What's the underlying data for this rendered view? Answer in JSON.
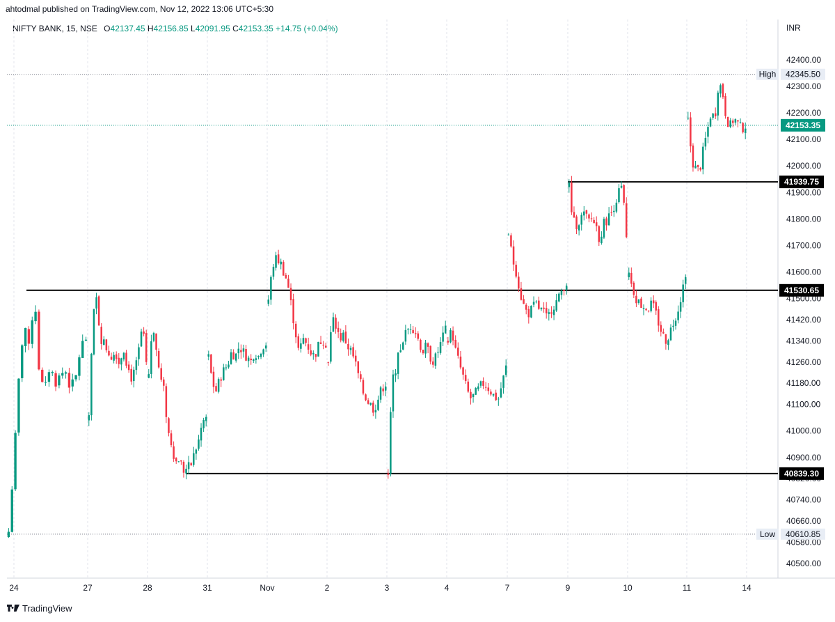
{
  "header": {
    "publisher": "ahtodmal published on TradingView.com, Nov 12, 2022 13:06 UTC+5:30"
  },
  "ohlc": {
    "symbol": "NIFTY BANK, 15, NSE",
    "o_label": "O",
    "o": "42137.45",
    "h_label": "H",
    "h": "42156.85",
    "l_label": "L",
    "l": "42091.95",
    "c_label": "C",
    "c": "42153.35",
    "change": "+14.75 (+0.04%)"
  },
  "footer": {
    "brand": "TradingView"
  },
  "colors": {
    "up": "#089981",
    "down": "#f23645",
    "grid": "#e0e3eb",
    "last_price_bg": "#089981",
    "level_bg": "#000000",
    "label_bg": "#e8edf5"
  },
  "chart_data": {
    "type": "candlestick",
    "currency": "INR",
    "y_ticks": [
      "42400.00",
      "42300.00",
      "42200.00",
      "42100.00",
      "42000.00",
      "41900.00",
      "41800.00",
      "41700.00",
      "41600.00",
      "41500.00",
      "41420.00",
      "41340.00",
      "41260.00",
      "41180.00",
      "41100.00",
      "41000.00",
      "40900.00",
      "40820.00",
      "40740.00",
      "40660.00",
      "40580.00",
      "40500.00"
    ],
    "x_ticks": [
      "24",
      "27",
      "28",
      "31",
      "Nov",
      "2",
      "3",
      "4",
      "7",
      "9",
      "10",
      "11",
      "14"
    ],
    "ylim": [
      40450,
      42450
    ],
    "high": {
      "label": "High",
      "value": "42345.50"
    },
    "low": {
      "label": "Low",
      "value": "40610.85"
    },
    "last_price": "42153.35",
    "horizontal_levels": [
      "41939.75",
      "41530.65",
      "40839.30"
    ],
    "trend_points": [
      {
        "day": "24",
        "v": [
          40620,
          40880,
          41200,
          41420,
          41300,
          41530,
          41200,
          41150,
          41250,
          41180,
          41210,
          41230,
          41160,
          41200,
          41320,
          41350
        ]
      },
      {
        "day": "27",
        "v": [
          41040,
          41420,
          41500,
          41350,
          41330,
          41300,
          41280,
          41300,
          41250,
          41320,
          41250,
          41200,
          41220,
          41300,
          41400,
          41250
        ]
      },
      {
        "day": "28",
        "v": [
          41200,
          41420,
          41300,
          41200,
          41150,
          41000,
          40950,
          40880,
          40900,
          40850,
          40860,
          40870,
          40920,
          40960,
          41030,
          41050
        ]
      },
      {
        "day": "31",
        "v": [
          41280,
          41180,
          41150,
          41200,
          41230,
          41250,
          41300,
          41280,
          41320,
          41300,
          41280,
          41260,
          41300,
          41280,
          41320,
          41330
        ]
      },
      {
        "day": "Nov",
        "v": [
          41480,
          41620,
          41650,
          41640,
          41600,
          41560,
          41470,
          41380,
          41290,
          41350,
          41330,
          41300,
          41280,
          41320,
          41350,
          41330
        ]
      },
      {
        "day": "2",
        "v": [
          41260,
          41420,
          41400,
          41350,
          41360,
          41320,
          41300,
          41260,
          41200,
          41150,
          41120,
          41100,
          41080,
          41120,
          41160,
          41180
        ]
      },
      {
        "day": "3",
        "v": [
          40840,
          41180,
          41240,
          41300,
          41350,
          41380,
          41400,
          41380,
          41340,
          41300,
          41320,
          41280,
          41260,
          41300,
          41340,
          41380
        ]
      },
      {
        "day": "4",
        "v": [
          41340,
          41380,
          41300,
          41250,
          41200,
          41150,
          41120,
          41140,
          41160,
          41180,
          41170,
          41150,
          41130,
          41120,
          41180,
          41240
        ]
      },
      {
        "day": "7",
        "v": [
          41740,
          41650,
          41600,
          41520,
          41470,
          41440,
          41460,
          41480,
          41460,
          41450,
          41420,
          41460,
          41480,
          41500,
          41540,
          41560
        ]
      },
      {
        "day": "9",
        "v": [
          41920,
          41790,
          41780,
          41800,
          41820,
          41790,
          41800,
          41780,
          41720,
          41780,
          41800,
          41820,
          41860,
          41900,
          41920,
          41720
        ]
      },
      {
        "day": "10",
        "v": [
          41580,
          41540,
          41500,
          41480,
          41470,
          41460,
          41480,
          41450,
          41400,
          41360,
          41340,
          41380,
          41420,
          41460,
          41520,
          41600
        ]
      },
      {
        "day": "11",
        "v": [
          42180,
          42020,
          41990,
          41980,
          42060,
          42130,
          42200,
          42180,
          42320,
          42280,
          42180,
          42150,
          42180,
          42160,
          42140,
          42153
        ]
      }
    ]
  }
}
